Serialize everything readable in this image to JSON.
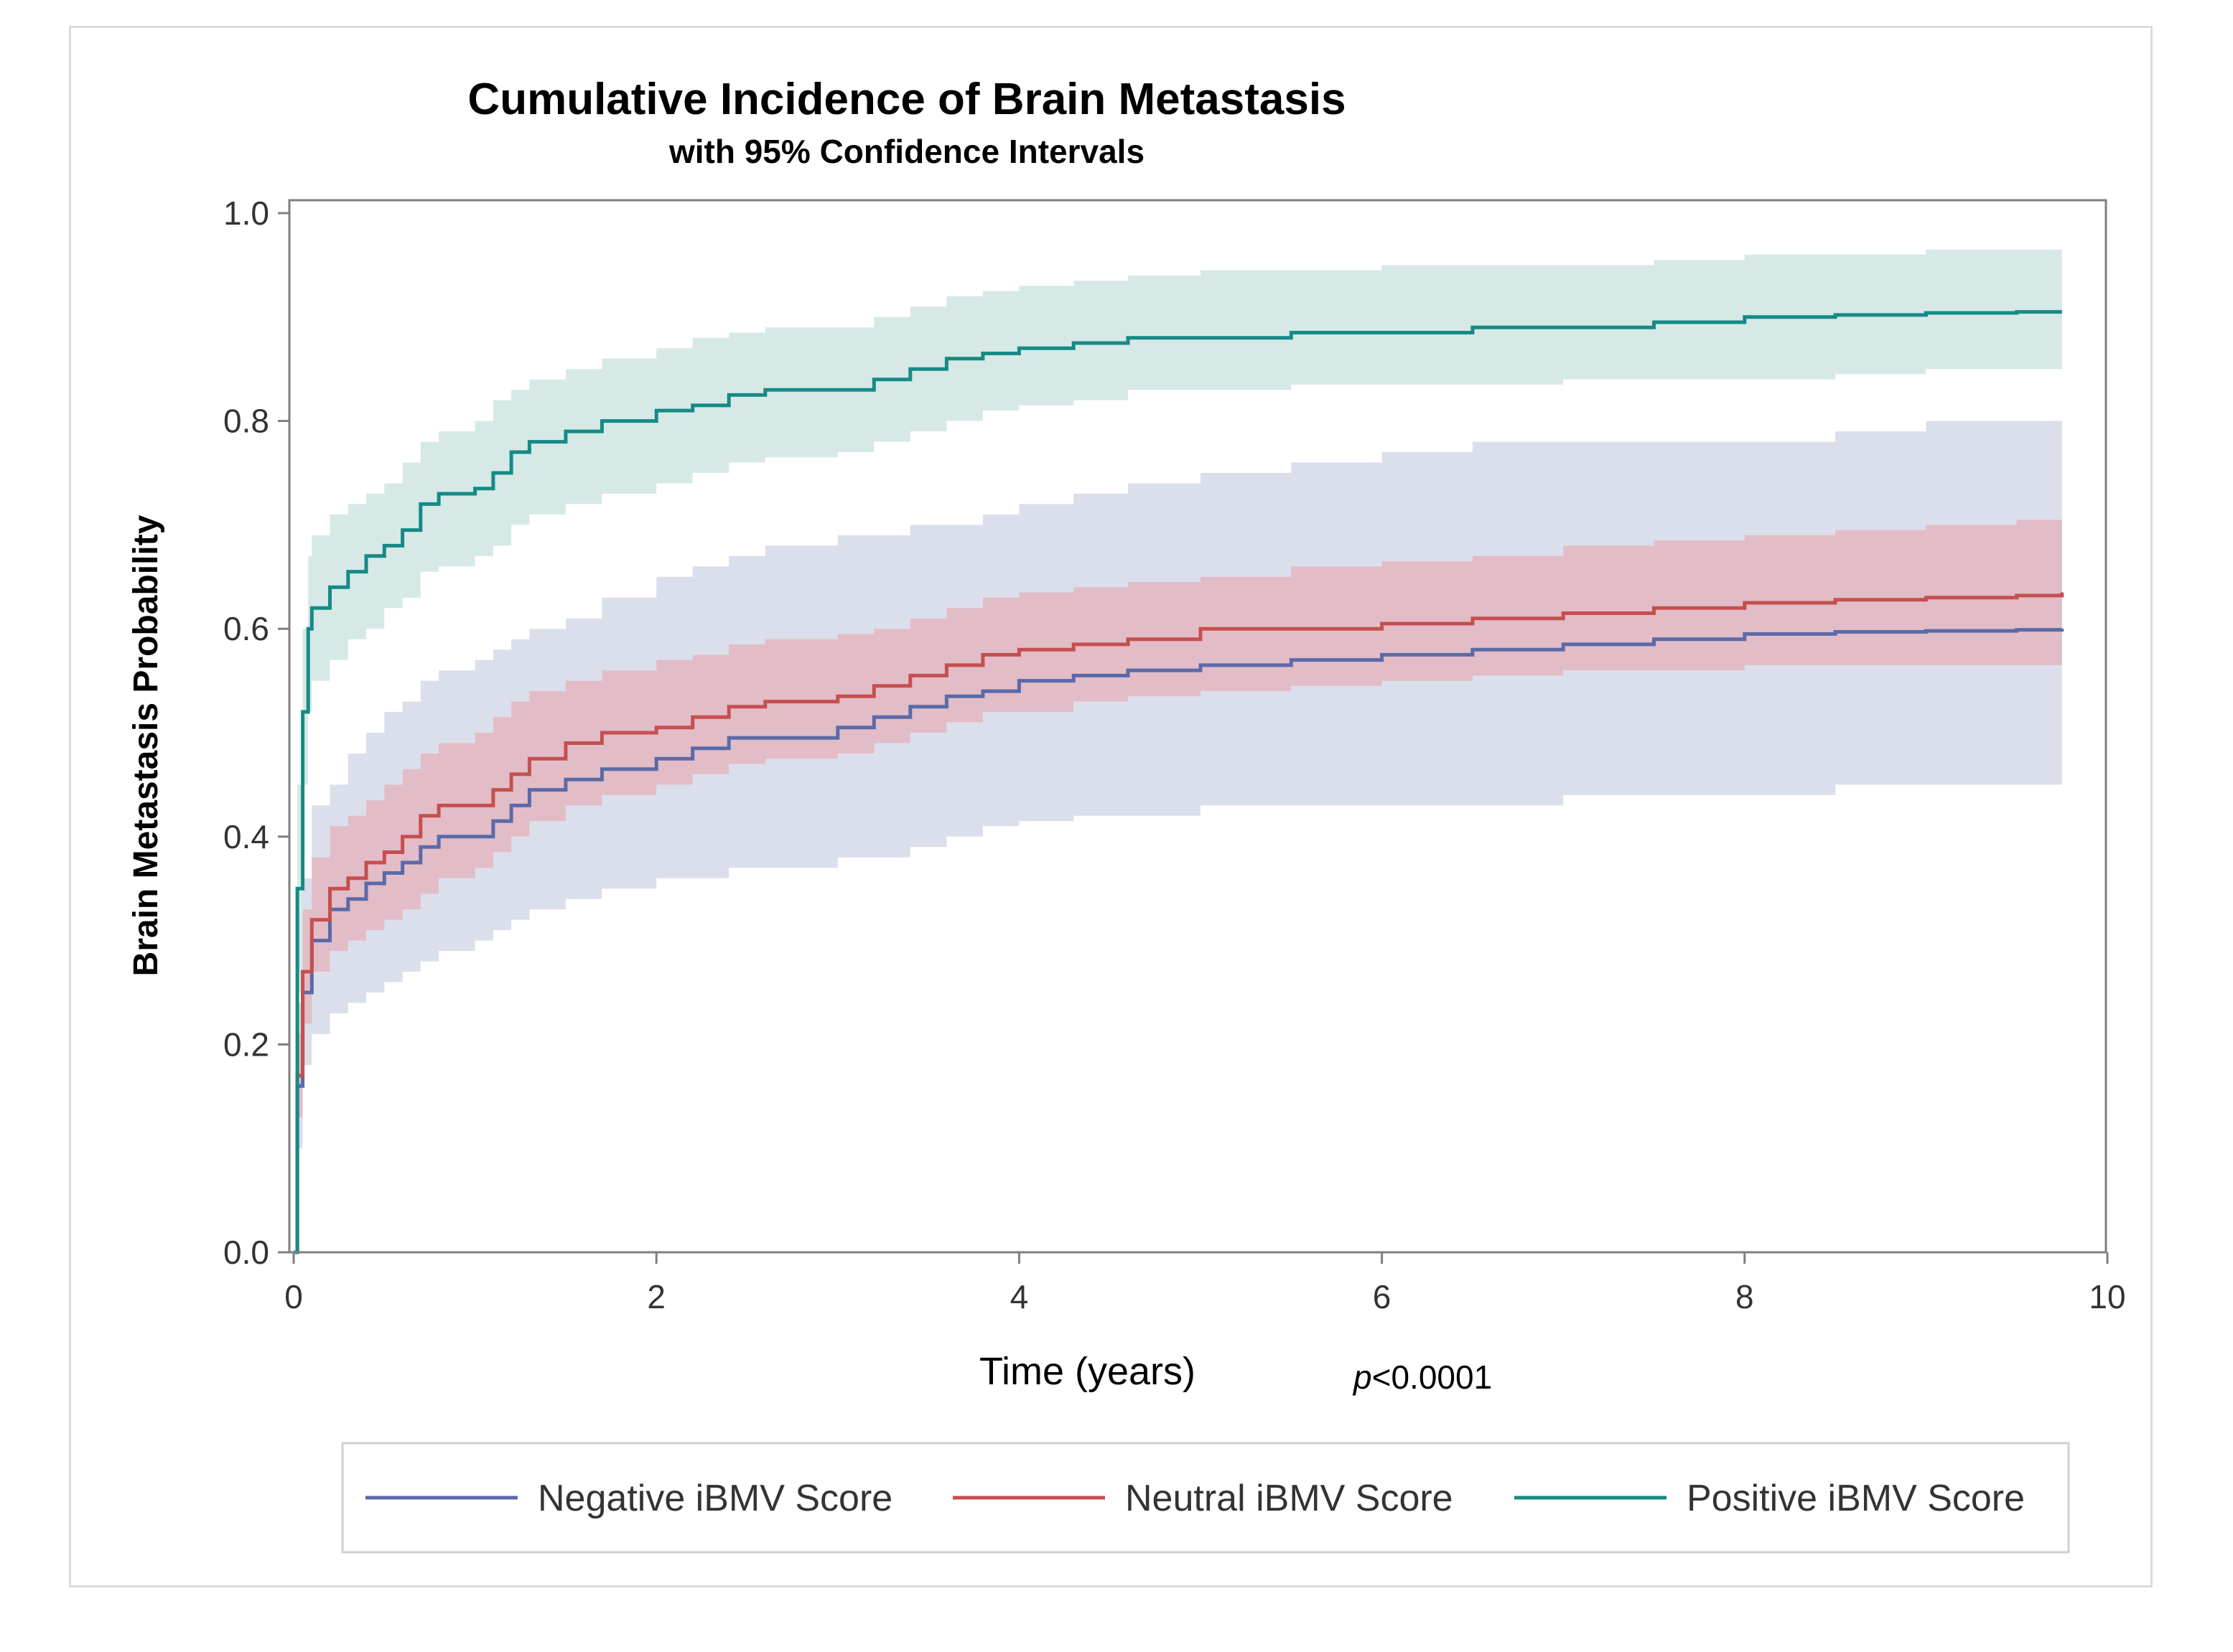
{
  "chart_data": {
    "type": "line",
    "title": "Cumulative Incidence of Brain Metastasis",
    "subtitle": "with 95% Confidence Intervals",
    "xlabel": "Time (years)",
    "ylabel": "Brain Metastasis Probability",
    "annotation_p": "p",
    "annotation_value": "<0.0001",
    "xlim": [
      0,
      10
    ],
    "ylim": [
      0,
      1
    ],
    "xticks": [
      0,
      2,
      4,
      6,
      8,
      10
    ],
    "yticks": [
      0.0,
      0.2,
      0.4,
      0.6,
      0.8,
      1.0
    ],
    "xtick_labels": [
      "0",
      "2",
      "4",
      "6",
      "8",
      "10"
    ],
    "ytick_labels": [
      "0.0",
      "0.2",
      "0.4",
      "0.6",
      "0.8",
      "1.0"
    ],
    "grid": false,
    "legend_position": "bottom",
    "series": [
      {
        "name": "Negative iBMV Score",
        "color": "#5b6aa8",
        "band_color": "#d5d9e7",
        "x": [
          0,
          0.02,
          0.05,
          0.1,
          0.2,
          0.3,
          0.4,
          0.5,
          0.6,
          0.7,
          0.8,
          1.0,
          1.1,
          1.2,
          1.3,
          1.5,
          1.7,
          2.0,
          2.2,
          2.4,
          2.6,
          3.0,
          3.2,
          3.4,
          3.6,
          3.8,
          4.0,
          4.3,
          4.6,
          5.0,
          5.5,
          6.0,
          6.5,
          7.0,
          7.5,
          8.0,
          8.5,
          9.0,
          9.5,
          9.75
        ],
        "y": [
          0,
          0.16,
          0.25,
          0.3,
          0.33,
          0.34,
          0.355,
          0.365,
          0.375,
          0.39,
          0.4,
          0.4,
          0.415,
          0.43,
          0.445,
          0.455,
          0.465,
          0.475,
          0.485,
          0.495,
          0.495,
          0.505,
          0.515,
          0.525,
          0.535,
          0.54,
          0.55,
          0.555,
          0.56,
          0.565,
          0.57,
          0.575,
          0.58,
          0.585,
          0.59,
          0.595,
          0.597,
          0.598,
          0.599,
          0.6
        ],
        "lower": [
          0,
          0.1,
          0.18,
          0.21,
          0.23,
          0.24,
          0.25,
          0.26,
          0.27,
          0.28,
          0.29,
          0.3,
          0.31,
          0.32,
          0.33,
          0.34,
          0.35,
          0.36,
          0.36,
          0.37,
          0.37,
          0.38,
          0.38,
          0.39,
          0.4,
          0.41,
          0.415,
          0.42,
          0.42,
          0.43,
          0.43,
          0.43,
          0.43,
          0.44,
          0.44,
          0.44,
          0.45,
          0.45,
          0.45,
          0.45
        ],
        "upper": [
          0,
          0.24,
          0.36,
          0.43,
          0.45,
          0.48,
          0.5,
          0.52,
          0.53,
          0.55,
          0.56,
          0.57,
          0.58,
          0.59,
          0.6,
          0.61,
          0.63,
          0.65,
          0.66,
          0.67,
          0.68,
          0.69,
          0.69,
          0.7,
          0.7,
          0.71,
          0.72,
          0.73,
          0.74,
          0.75,
          0.76,
          0.77,
          0.78,
          0.78,
          0.78,
          0.78,
          0.79,
          0.8,
          0.8,
          0.8
        ]
      },
      {
        "name": "Neutral iBMV Score",
        "color": "#c64f4f",
        "band_color": "#e3b7c1",
        "x": [
          0,
          0.02,
          0.05,
          0.1,
          0.2,
          0.3,
          0.4,
          0.5,
          0.6,
          0.7,
          0.8,
          1.0,
          1.1,
          1.2,
          1.3,
          1.5,
          1.7,
          2.0,
          2.2,
          2.4,
          2.6,
          3.0,
          3.2,
          3.4,
          3.6,
          3.8,
          4.0,
          4.3,
          4.6,
          5.0,
          5.5,
          6.0,
          6.5,
          7.0,
          7.5,
          8.0,
          8.5,
          9.0,
          9.5,
          9.75
        ],
        "y": [
          0,
          0.17,
          0.27,
          0.32,
          0.35,
          0.36,
          0.375,
          0.385,
          0.4,
          0.42,
          0.43,
          0.43,
          0.445,
          0.46,
          0.475,
          0.49,
          0.5,
          0.505,
          0.515,
          0.525,
          0.53,
          0.535,
          0.545,
          0.555,
          0.565,
          0.575,
          0.58,
          0.585,
          0.59,
          0.6,
          0.6,
          0.605,
          0.61,
          0.615,
          0.62,
          0.625,
          0.628,
          0.63,
          0.632,
          0.635
        ],
        "lower": [
          0,
          0.13,
          0.22,
          0.27,
          0.29,
          0.3,
          0.31,
          0.32,
          0.33,
          0.345,
          0.36,
          0.37,
          0.385,
          0.4,
          0.415,
          0.43,
          0.44,
          0.45,
          0.46,
          0.47,
          0.475,
          0.48,
          0.49,
          0.5,
          0.51,
          0.52,
          0.52,
          0.53,
          0.535,
          0.54,
          0.545,
          0.55,
          0.555,
          0.56,
          0.56,
          0.565,
          0.565,
          0.565,
          0.565,
          0.565
        ],
        "upper": [
          0,
          0.21,
          0.33,
          0.38,
          0.41,
          0.42,
          0.435,
          0.45,
          0.465,
          0.48,
          0.49,
          0.5,
          0.515,
          0.53,
          0.54,
          0.55,
          0.56,
          0.57,
          0.575,
          0.585,
          0.59,
          0.595,
          0.6,
          0.61,
          0.62,
          0.63,
          0.635,
          0.64,
          0.645,
          0.65,
          0.66,
          0.665,
          0.67,
          0.68,
          0.685,
          0.69,
          0.695,
          0.7,
          0.705,
          0.71
        ]
      },
      {
        "name": "Positive iBMV Score",
        "color": "#168a85",
        "band_color": "#cfe5e3",
        "x": [
          0,
          0.02,
          0.05,
          0.08,
          0.1,
          0.2,
          0.3,
          0.4,
          0.5,
          0.6,
          0.7,
          0.8,
          1.0,
          1.1,
          1.2,
          1.3,
          1.5,
          1.7,
          2.0,
          2.2,
          2.4,
          2.6,
          3.0,
          3.2,
          3.4,
          3.6,
          3.8,
          4.0,
          4.3,
          4.6,
          5.0,
          5.5,
          6.0,
          6.5,
          7.0,
          7.5,
          8.0,
          8.5,
          9.0,
          9.5,
          9.75
        ],
        "y": [
          0,
          0.35,
          0.52,
          0.6,
          0.62,
          0.64,
          0.655,
          0.67,
          0.68,
          0.695,
          0.72,
          0.73,
          0.735,
          0.75,
          0.77,
          0.78,
          0.79,
          0.8,
          0.81,
          0.815,
          0.825,
          0.83,
          0.83,
          0.84,
          0.85,
          0.86,
          0.865,
          0.87,
          0.875,
          0.88,
          0.88,
          0.885,
          0.885,
          0.89,
          0.89,
          0.895,
          0.9,
          0.902,
          0.904,
          0.905,
          0.905
        ],
        "lower": [
          0,
          0.25,
          0.45,
          0.52,
          0.55,
          0.57,
          0.59,
          0.6,
          0.62,
          0.63,
          0.655,
          0.66,
          0.67,
          0.68,
          0.7,
          0.71,
          0.72,
          0.73,
          0.74,
          0.75,
          0.76,
          0.765,
          0.77,
          0.78,
          0.79,
          0.8,
          0.81,
          0.815,
          0.82,
          0.83,
          0.83,
          0.835,
          0.835,
          0.835,
          0.84,
          0.84,
          0.84,
          0.845,
          0.85,
          0.85,
          0.85
        ],
        "upper": [
          0,
          0.45,
          0.6,
          0.67,
          0.69,
          0.71,
          0.72,
          0.73,
          0.74,
          0.76,
          0.78,
          0.79,
          0.8,
          0.82,
          0.83,
          0.84,
          0.85,
          0.86,
          0.87,
          0.88,
          0.885,
          0.89,
          0.89,
          0.9,
          0.91,
          0.92,
          0.925,
          0.93,
          0.935,
          0.94,
          0.945,
          0.945,
          0.95,
          0.95,
          0.95,
          0.955,
          0.96,
          0.96,
          0.965,
          0.965,
          0.965
        ]
      }
    ]
  }
}
